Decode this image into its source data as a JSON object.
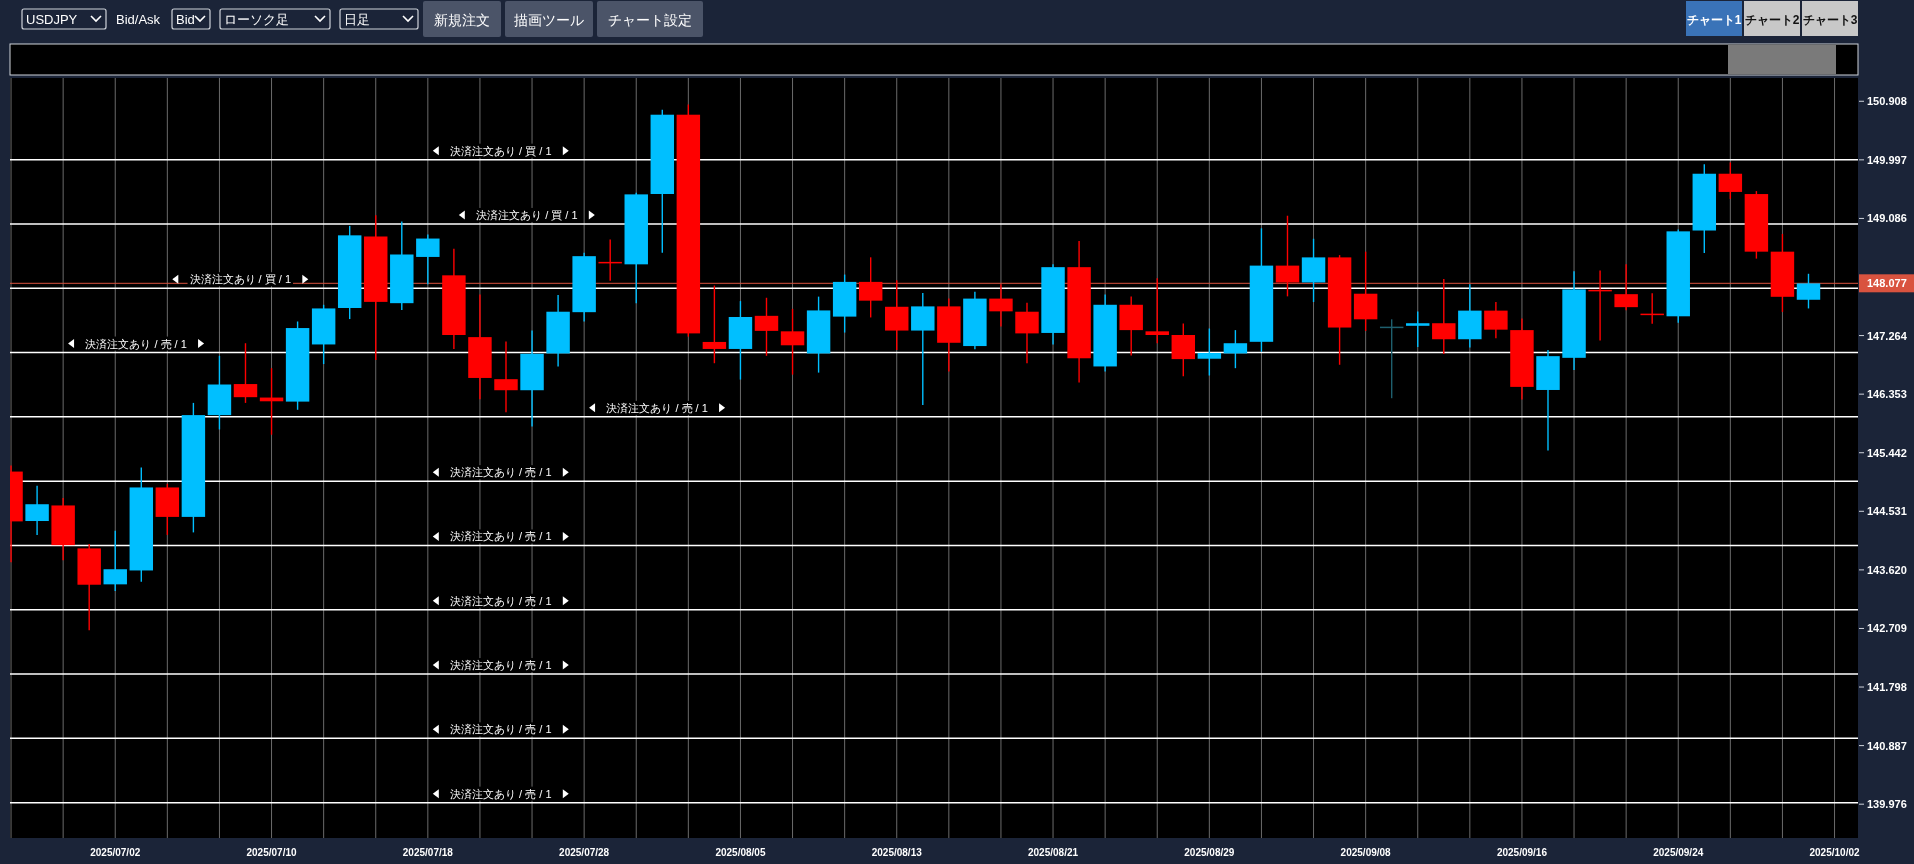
{
  "chart_data": {
    "type": "candlestick",
    "categories": [
      null,
      null,
      null,
      null,
      "2025/07/02",
      null,
      null,
      null,
      null,
      null,
      "2025/07/10",
      null,
      null,
      null,
      null,
      null,
      "2025/07/18",
      null,
      null,
      null,
      null,
      null,
      "2025/07/28",
      null,
      null,
      null,
      null,
      null,
      "2025/08/05",
      null,
      null,
      null,
      null,
      null,
      "2025/08/13",
      null,
      null,
      null,
      null,
      null,
      "2025/08/21",
      null,
      null,
      null,
      null,
      null,
      "2025/08/29",
      null,
      null,
      null,
      null,
      null,
      "2025/09/08",
      null,
      null,
      null,
      null,
      null,
      "2025/09/16",
      null,
      null,
      null,
      null,
      null,
      "2025/09/24",
      null,
      null,
      null,
      null,
      null,
      "2025/10/02"
    ],
    "ohlc": [
      [
        145.149,
        145.244,
        143.738,
        144.374
      ],
      [
        144.38,
        144.927,
        144.164,
        144.641
      ],
      [
        144.622,
        144.736,
        143.77,
        144.005
      ],
      [
        143.954,
        144.024,
        142.683,
        143.389
      ],
      [
        143.395,
        144.228,
        143.293,
        143.63
      ],
      [
        143.611,
        145.213,
        143.434,
        144.902
      ],
      [
        144.902,
        144.958,
        144.164,
        144.444
      ],
      [
        144.444,
        146.217,
        144.203,
        146.027
      ],
      [
        146.027,
        146.949,
        145.804,
        146.503
      ],
      [
        146.51,
        147.145,
        146.217,
        146.306
      ],
      [
        146.3,
        146.757,
        145.722,
        146.242
      ],
      [
        146.237,
        147.483,
        146.11,
        147.381
      ],
      [
        147.126,
        147.743,
        146.821,
        147.686
      ],
      [
        147.693,
        148.97,
        147.521,
        148.823
      ],
      [
        148.805,
        149.136,
        146.885,
        147.788
      ],
      [
        147.768,
        149.04,
        147.66,
        148.525
      ],
      [
        148.487,
        148.837,
        148.061,
        148.773
      ],
      [
        148.201,
        148.614,
        147.056,
        147.273
      ],
      [
        147.24,
        147.902,
        146.274,
        146.605
      ],
      [
        146.586,
        147.171,
        146.072,
        146.414
      ],
      [
        146.414,
        147.342,
        145.849,
        146.981
      ],
      [
        146.986,
        147.896,
        146.784,
        147.635
      ],
      [
        147.628,
        148.551,
        147.483,
        148.499
      ],
      [
        148.41,
        148.76,
        148.118,
        148.392
      ],
      [
        148.372,
        149.485,
        147.768,
        149.46
      ],
      [
        149.466,
        150.776,
        148.551,
        150.699
      ],
      [
        150.699,
        150.858,
        147.247,
        147.298
      ],
      [
        147.165,
        148.042,
        146.834,
        147.056
      ],
      [
        147.056,
        147.8,
        146.58,
        147.553
      ],
      [
        147.571,
        147.852,
        146.949,
        147.337
      ],
      [
        147.33,
        147.68,
        146.657,
        147.113
      ],
      [
        146.986,
        147.87,
        146.688,
        147.655
      ],
      [
        147.559,
        148.213,
        147.311,
        148.099
      ],
      [
        148.099,
        148.481,
        147.546,
        147.807
      ],
      [
        147.712,
        148.125,
        147.038,
        147.342
      ],
      [
        147.342,
        147.927,
        146.185,
        147.718
      ],
      [
        147.718,
        147.839,
        146.707,
        147.152
      ],
      [
        147.101,
        147.947,
        147.05,
        147.839
      ],
      [
        147.839,
        148.061,
        147.406,
        147.641
      ],
      [
        147.635,
        147.775,
        146.834,
        147.298
      ],
      [
        147.305,
        148.372,
        147.126,
        148.328
      ],
      [
        148.328,
        148.735,
        146.535,
        146.911
      ],
      [
        146.784,
        147.902,
        146.707,
        147.743
      ],
      [
        147.743,
        147.87,
        146.955,
        147.349
      ],
      [
        147.33,
        148.156,
        147.145,
        147.273
      ],
      [
        147.273,
        147.451,
        146.63,
        146.898
      ],
      [
        146.904,
        147.374,
        146.643,
        146.993
      ],
      [
        146.986,
        147.349,
        146.757,
        147.145
      ],
      [
        147.167,
        148.932,
        147.012,
        148.352
      ],
      [
        148.352,
        149.128,
        147.874,
        148.09
      ],
      [
        148.09,
        148.77,
        147.786,
        148.48
      ],
      [
        148.48,
        148.515,
        146.81,
        147.389
      ],
      [
        147.915,
        148.569,
        147.336,
        147.517
      ],
      [
        147.403,
        147.517,
        146.29,
        147.403
      ],
      [
        147.416,
        147.638,
        147.086,
        147.456
      ],
      [
        147.456,
        148.143,
        146.978,
        147.207
      ],
      [
        147.207,
        148.063,
        147.079,
        147.652
      ],
      [
        147.652,
        147.786,
        147.221,
        147.356
      ],
      [
        147.349,
        147.53,
        146.27,
        146.466
      ],
      [
        146.418,
        147.038,
        145.476,
        146.944
      ],
      [
        146.918,
        148.265,
        146.729,
        147.982
      ],
      [
        147.975,
        148.278,
        147.186,
        147.956
      ],
      [
        147.908,
        148.373,
        147.658,
        147.706
      ],
      [
        147.605,
        147.921,
        147.449,
        147.591
      ],
      [
        147.564,
        148.912,
        147.463,
        148.885
      ],
      [
        148.898,
        149.929,
        148.548,
        149.781
      ],
      [
        149.781,
        149.957,
        149.39,
        149.498
      ],
      [
        149.465,
        149.511,
        148.461,
        148.569
      ],
      [
        148.569,
        148.845,
        147.632,
        147.867
      ],
      [
        147.821,
        148.225,
        147.686,
        148.076
      ],
      null
    ],
    "colors": [
      "#ff0000",
      "#00bfff",
      "#ff0000",
      "#ff0000",
      "#00bfff",
      "#00bfff",
      "#ff0000",
      "#00bfff",
      "#00bfff",
      "#ff0000",
      "#ff0000",
      "#00bfff",
      "#00bfff",
      "#00bfff",
      "#ff0000",
      "#00bfff",
      "#00bfff",
      "#ff0000",
      "#ff0000",
      "#ff0000",
      "#00bfff",
      "#00bfff",
      "#00bfff",
      "#ff0000",
      "#00bfff",
      "#00bfff",
      "#ff0000",
      "#ff0000",
      "#00bfff",
      "#ff0000",
      "#ff0000",
      "#00bfff",
      "#00bfff",
      "#ff0000",
      "#ff0000",
      "#00bfff",
      "#ff0000",
      "#00bfff",
      "#ff0000",
      "#ff0000",
      "#00bfff",
      "#ff0000",
      "#00bfff",
      "#ff0000",
      "#ff0000",
      "#ff0000",
      "#00bfff",
      "#00bfff",
      "#00bfff",
      "#ff0000",
      "#00bfff",
      "#ff0000",
      "#ff0000",
      "#1e5f6e",
      "#00bfff",
      "#ff0000",
      "#00bfff",
      "#ff0000",
      "#ff0000",
      "#00bfff",
      "#00bfff",
      "#ff0000",
      "#ff0000",
      "#ff0000",
      "#00bfff",
      "#00bfff",
      "#ff0000",
      "#ff0000",
      "#ff0000",
      "#00bfff",
      null
    ],
    "ylim": [
      139.45,
      151.27
    ],
    "yticks": [
      139.976,
      140.887,
      141.798,
      142.709,
      {
        "value": 143.62,
        "label": "143.620"
      },
      144.531,
      145.442,
      146.353,
      147.264,
      {
        "value": 148.175,
        "label": null
      },
      149.086,
      149.997,
      150.908
    ],
    "grid": "x",
    "ref_lines": [
      {
        "axis": "y",
        "value": 150,
        "label": "決済注文あり / 買 / 1",
        "color": "#ffffff"
      },
      {
        "axis": "y",
        "value": 149,
        "label": "決済注文あり / 買 / 1",
        "color": "#ffffff"
      },
      {
        "axis": "y",
        "value": 148,
        "label": "決済注文あり / 買 / 1",
        "color": "#ffffff"
      },
      {
        "axis": "y",
        "value": 147,
        "label": "決済注文あり / 売 / 1",
        "color": "#ffffff"
      },
      {
        "axis": "y",
        "value": 146,
        "label": "決済注文あり / 売 / 1",
        "color": "#ffffff"
      },
      {
        "axis": "y",
        "value": 145,
        "label": "決済注文あり / 売 / 1",
        "color": "#ffffff"
      },
      {
        "axis": "y",
        "value": 144,
        "label": "決済注文あり / 売 / 1",
        "color": "#ffffff"
      },
      {
        "axis": "y",
        "value": 143,
        "label": "決済注文あり / 売 / 1",
        "color": "#ffffff"
      },
      {
        "axis": "y",
        "value": 142,
        "label": "決済注文あり / 売 / 1",
        "color": "#ffffff"
      },
      {
        "axis": "y",
        "value": 141,
        "label": "決済注文あり / 売 / 1",
        "color": "#ffffff"
      },
      {
        "axis": "y",
        "value": 140,
        "label": "決済注文あり / 売 / 1",
        "color": "#ffffff"
      },
      {
        "axis": "y",
        "value": 148.077,
        "label": "148.077",
        "color": "#d9533f"
      }
    ],
    "annotations": [
      "USDJPY",
      "Bid/Ask",
      "Bid",
      "ローソク足",
      "日足",
      "新規注文",
      "描画ツール",
      "チャート設定",
      "チャート1",
      "チャート2",
      "チャート3"
    ]
  }
}
